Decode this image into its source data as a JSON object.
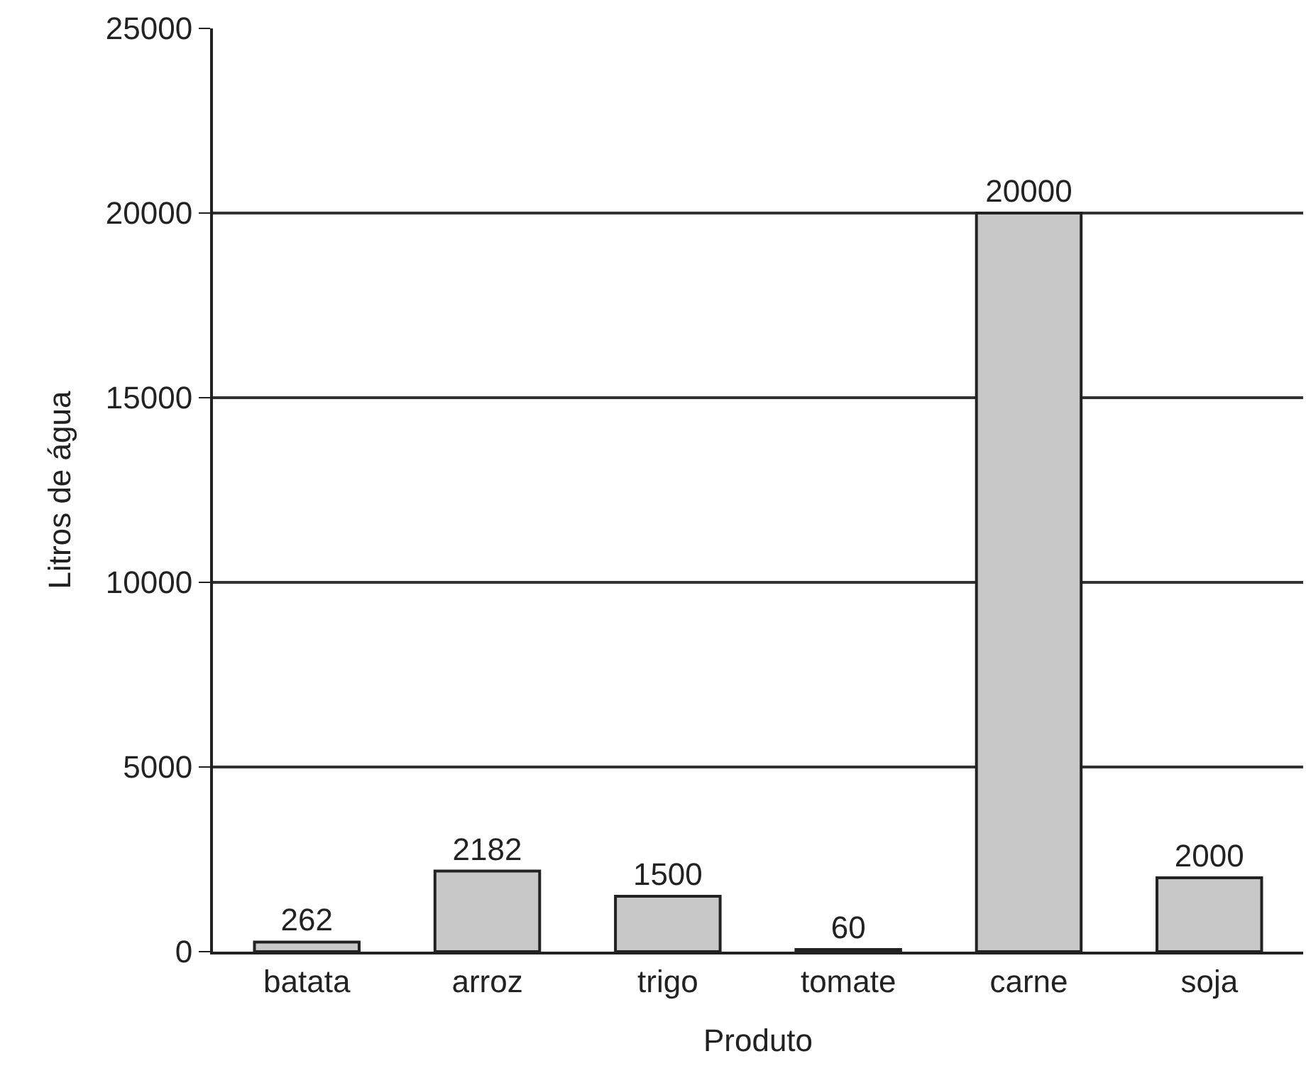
{
  "chart_data": {
    "type": "bar",
    "xlabel": "Produto",
    "ylabel": "Litros de água",
    "categories": [
      "batata",
      "arroz",
      "trigo",
      "tomate",
      "carne",
      "soja"
    ],
    "values": [
      262,
      2182,
      1500,
      60,
      20000,
      2000
    ],
    "color": "#c8c8c8",
    "ylim": [
      0,
      25000
    ],
    "yticks": [
      0,
      5000,
      10000,
      15000,
      20000,
      25000
    ],
    "grid": "y",
    "data_labels": true
  }
}
